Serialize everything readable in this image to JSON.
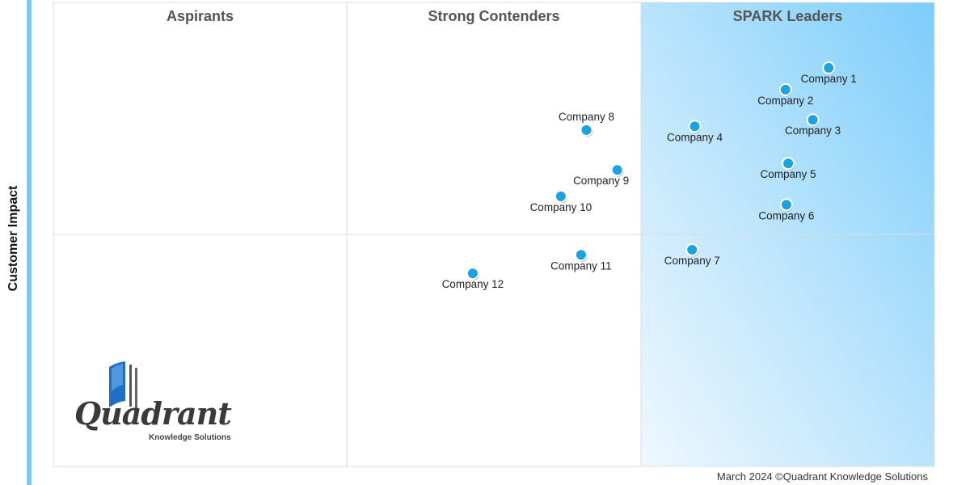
{
  "chart_data": {
    "type": "scatter",
    "title": "",
    "xlabel": "",
    "ylabel": "Customer Impact",
    "xlim": [
      0,
      100
    ],
    "ylim": [
      0,
      100
    ],
    "grid": "quadrants",
    "quadrant_boundaries": {
      "x": [
        33.3,
        66.7
      ],
      "y": 50
    },
    "quadrants": [
      "Aspirants",
      "Strong Contenders",
      "SPARK Leaders"
    ],
    "point_color": "#1aa3e0",
    "leader_fill": "#8fd3fb",
    "points": [
      {
        "name": "Company 1",
        "x": 88.0,
        "y": 85.9
      },
      {
        "name": "Company 2",
        "x": 83.1,
        "y": 81.2
      },
      {
        "name": "Company 3",
        "x": 86.2,
        "y": 74.7
      },
      {
        "name": "Company 4",
        "x": 72.8,
        "y": 73.3
      },
      {
        "name": "Company 5",
        "x": 83.4,
        "y": 65.3
      },
      {
        "name": "Company 6",
        "x": 83.2,
        "y": 56.4
      },
      {
        "name": "Company 7",
        "x": 72.5,
        "y": 46.7
      },
      {
        "name": "Company 8",
        "x": 60.5,
        "y": 72.5
      },
      {
        "name": "Company 9",
        "x": 64.0,
        "y": 63.9
      },
      {
        "name": "Company 10",
        "x": 57.6,
        "y": 58.2
      },
      {
        "name": "Company 11",
        "x": 59.9,
        "y": 45.6
      },
      {
        "name": "Company 12",
        "x": 47.6,
        "y": 41.6
      }
    ]
  },
  "footer": "March 2024 ©Quadrant Knowledge Solutions",
  "logo": {
    "word": "Quadrant",
    "sub": "Knowledge Solutions"
  }
}
